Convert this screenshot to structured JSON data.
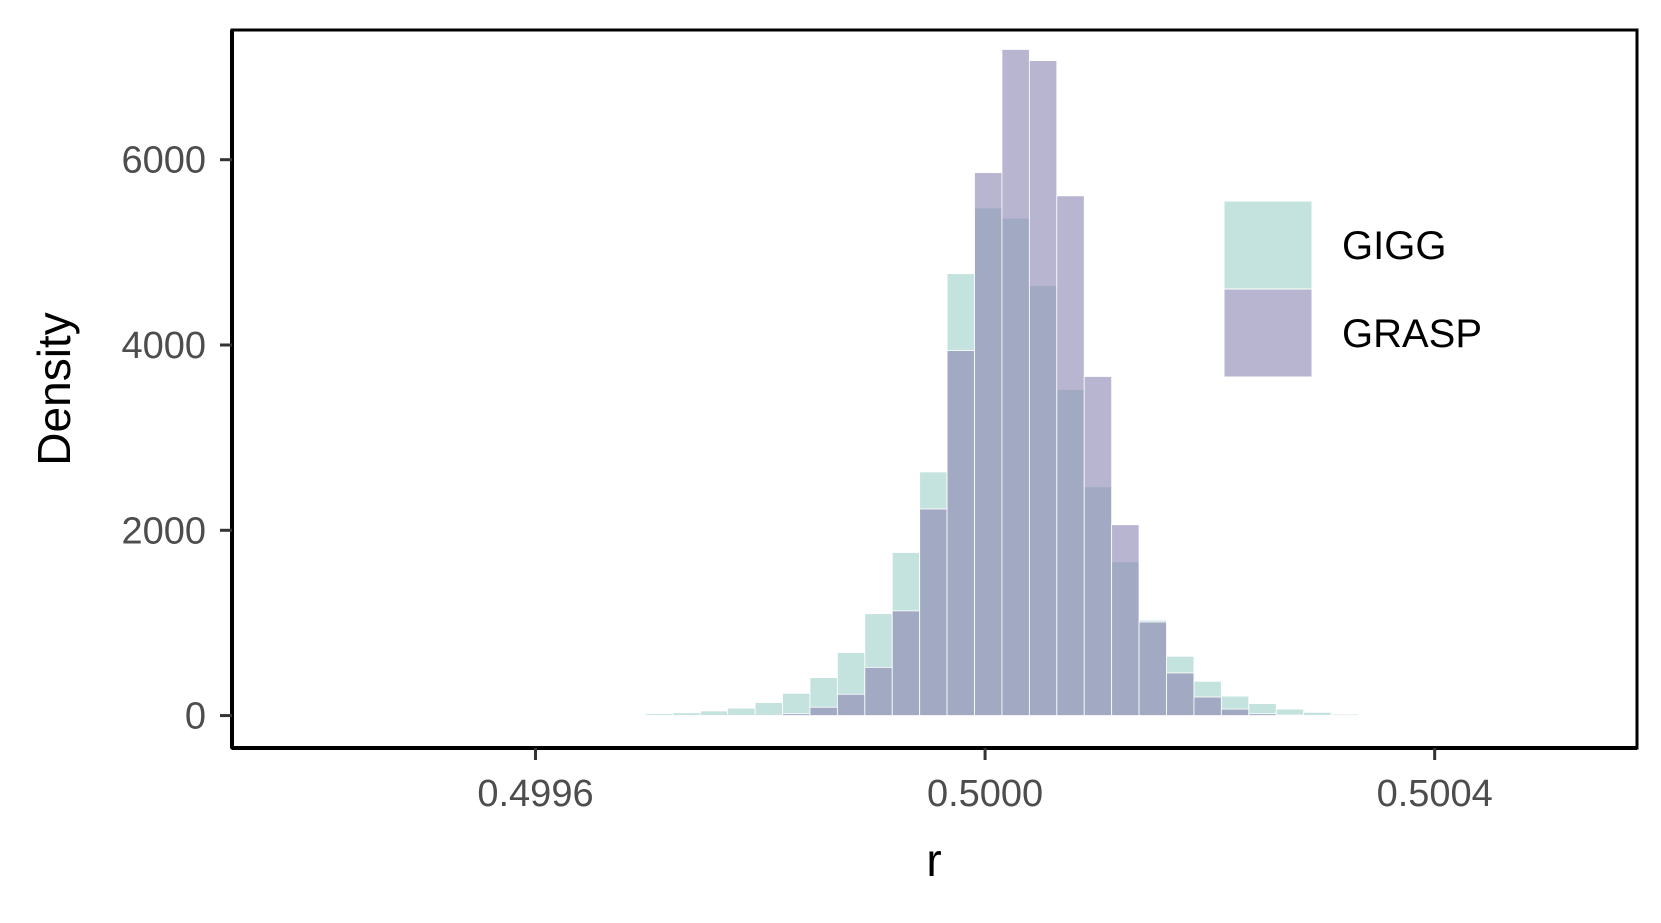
{
  "colors": {
    "GIGG": "#aad6cf",
    "GRASP": "#8c88b3",
    "bar_edge": "#ffffff",
    "panel_border": "#000000"
  },
  "chart_data": {
    "type": "bar",
    "subtype": "overlaid-histogram",
    "title": "",
    "xlabel": "r",
    "ylabel": "Density",
    "xlim": [
      0.49933,
      0.50058
    ],
    "ylim": [
      -350,
      7400
    ],
    "xticks": [
      0.4996,
      0.5,
      0.5004
    ],
    "xtick_labels": [
      "0.4996",
      "0.5000",
      "0.5004"
    ],
    "yticks": [
      0,
      2000,
      4000,
      6000
    ],
    "ytick_labels": [
      "0",
      "2000",
      "4000",
      "6000"
    ],
    "grid": false,
    "legend_position": "top-right",
    "bin_width": 2.44e-05,
    "bin_starts": [
      0.499405,
      0.4994294,
      0.4994538,
      0.4994782,
      0.4995026,
      0.499527,
      0.4995514,
      0.4995758,
      0.4996002,
      0.4996246,
      0.499649,
      0.4996734,
      0.4996978,
      0.4997222,
      0.4997466,
      0.499771,
      0.4997954,
      0.4998198,
      0.4998442,
      0.4998686,
      0.499893,
      0.4999174,
      0.4999418,
      0.4999662,
      0.4999906,
      0.500015,
      0.5000394,
      0.5000638,
      0.5000882,
      0.5001126,
      0.500137,
      0.5001614,
      0.5001858,
      0.5002102,
      0.5002346,
      0.500259,
      0.5002834,
      0.5003078,
      0.5003322,
      0.5003566,
      0.500381,
      0.5004054,
      0.5004298,
      0.5004542,
      0.5004786,
      0.500503,
      0.5005274,
      0.5005518,
      0.5005762
    ],
    "series": [
      {
        "name": "GIGG",
        "values": [
          0,
          0,
          0,
          0,
          0,
          0,
          0,
          0,
          0,
          0,
          5,
          10,
          20,
          30,
          50,
          80,
          140,
          240,
          410,
          680,
          1100,
          1760,
          2630,
          4770,
          5480,
          5370,
          4640,
          3520,
          2470,
          1660,
          1030,
          640,
          370,
          210,
          130,
          70,
          35,
          15,
          8,
          3,
          0,
          0,
          0,
          0,
          0,
          0,
          0,
          0,
          0
        ]
      },
      {
        "name": "GRASP",
        "values": [
          0,
          0,
          0,
          0,
          0,
          0,
          0,
          0,
          0,
          0,
          0,
          0,
          0,
          0,
          0,
          0,
          0,
          20,
          90,
          230,
          520,
          1130,
          2230,
          3940,
          5860,
          7190,
          7070,
          5610,
          3660,
          2060,
          1010,
          460,
          200,
          70,
          20,
          5,
          0,
          0,
          0,
          0,
          0,
          0,
          0,
          0,
          0,
          0,
          0,
          0,
          0
        ]
      }
    ]
  }
}
